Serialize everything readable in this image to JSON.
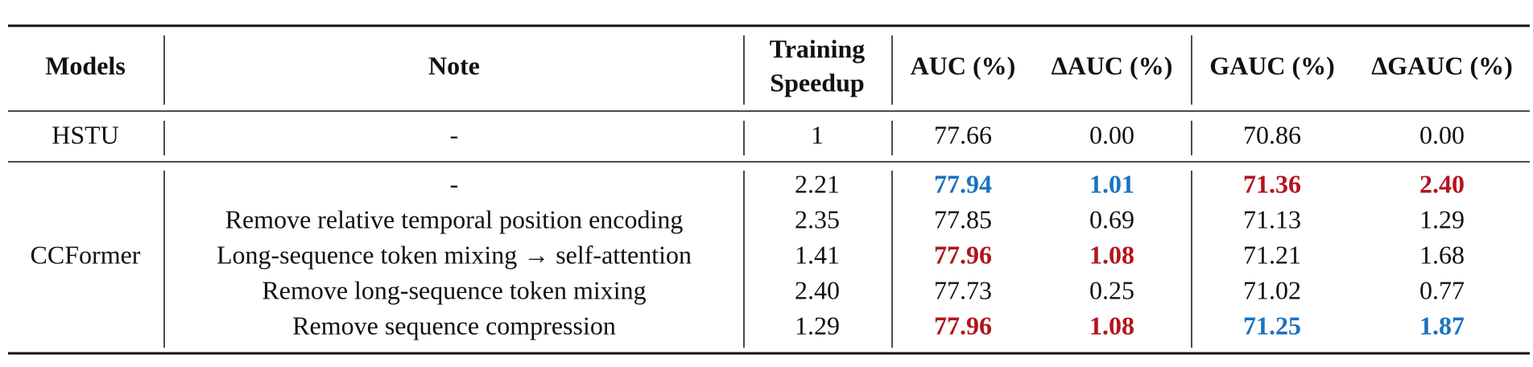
{
  "table": {
    "header": [
      "Models",
      "Note",
      [
        "Training",
        "Speedup"
      ],
      "AUC (%)",
      "ΔAUC (%)",
      "GAUC (%)",
      "ΔGAUC (%)"
    ],
    "emphasis_colors": {
      "red": "#b3141c",
      "blue": "#1b72bf"
    },
    "groups": [
      {
        "model": "HSTU",
        "rows": [
          {
            "cells": [
              "-",
              "1",
              "77.66",
              "0.00",
              "70.86",
              "0.00"
            ],
            "emphasis": [
              null,
              null,
              null,
              null,
              null,
              null
            ]
          }
        ]
      },
      {
        "model": "CCFormer",
        "rows": [
          {
            "cells": [
              "-",
              "2.21",
              "77.94",
              "1.01",
              "71.36",
              "2.40"
            ],
            "emphasis": [
              null,
              null,
              "blue",
              "blue",
              "red",
              "red"
            ]
          },
          {
            "cells": [
              "Remove relative temporal position encoding",
              "2.35",
              "77.85",
              "0.69",
              "71.13",
              "1.29"
            ],
            "emphasis": [
              null,
              null,
              null,
              null,
              null,
              null
            ]
          },
          {
            "cells": [
              "Long-sequence token mixing → self-attention",
              "1.41",
              "77.96",
              "1.08",
              "71.21",
              "1.68"
            ],
            "emphasis": [
              null,
              null,
              "red",
              "red",
              null,
              null
            ]
          },
          {
            "cells": [
              "Remove long-sequence token mixing",
              "2.40",
              "77.73",
              "0.25",
              "71.02",
              "0.77"
            ],
            "emphasis": [
              null,
              null,
              null,
              null,
              null,
              null
            ]
          },
          {
            "cells": [
              "Remove sequence compression",
              "1.29",
              "77.96",
              "1.08",
              "71.25",
              "1.87"
            ],
            "emphasis": [
              null,
              null,
              "red",
              "red",
              "blue",
              "blue"
            ]
          }
        ]
      }
    ]
  }
}
